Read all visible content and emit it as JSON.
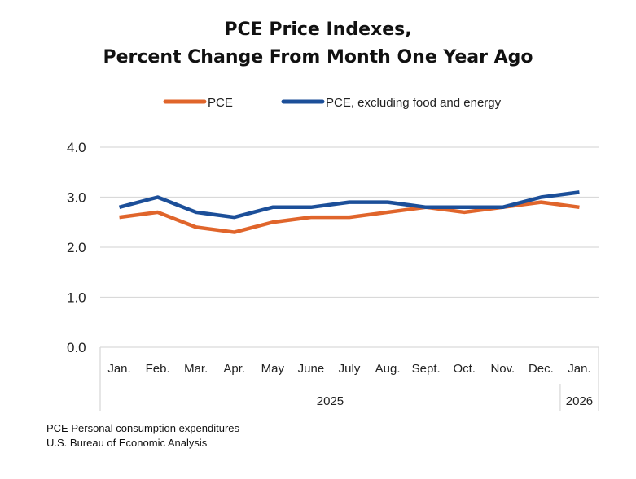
{
  "chart_data": {
    "type": "line",
    "title": [
      "PCE Price Indexes,",
      "Percent Change From Month One Year Ago"
    ],
    "categories": [
      "Jan.",
      "Feb.",
      "Mar.",
      "Apr.",
      "May",
      "June",
      "July",
      "Aug.",
      "Sept.",
      "Oct.",
      "Nov.",
      "Dec.",
      "Jan."
    ],
    "year_groups": [
      {
        "label": "2025",
        "count": 12
      },
      {
        "label": "2026",
        "count": 1
      }
    ],
    "series": [
      {
        "name": "PCE",
        "color": "#E0652B",
        "values": [
          2.6,
          2.7,
          2.4,
          2.3,
          2.5,
          2.6,
          2.6,
          2.7,
          2.8,
          2.7,
          2.8,
          2.9,
          2.8
        ]
      },
      {
        "name": "PCE, excluding food and energy",
        "color": "#1C4F99",
        "values": [
          2.8,
          3.0,
          2.7,
          2.6,
          2.8,
          2.8,
          2.9,
          2.9,
          2.8,
          2.8,
          2.8,
          3.0,
          3.1
        ]
      }
    ],
    "yticks": [
      "0.0",
      "1.0",
      "2.0",
      "3.0",
      "4.0"
    ],
    "ylim": [
      0,
      4
    ],
    "grid": true,
    "legend": "top"
  },
  "footnotes": [
    "PCE Personal consumption expenditures",
    "U.S. Bureau of Economic Analysis"
  ]
}
